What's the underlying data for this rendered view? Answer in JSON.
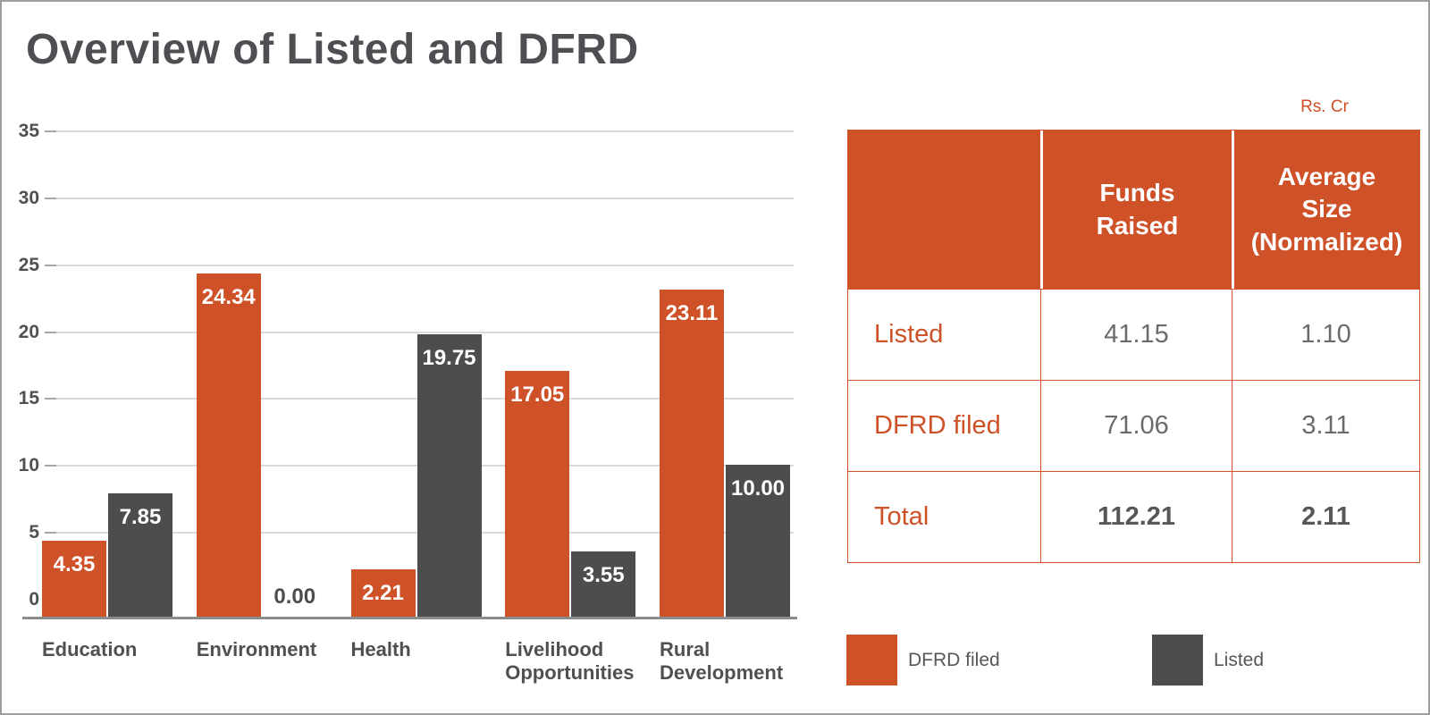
{
  "page": {
    "title": "Overview of Listed and DFRD"
  },
  "colors": {
    "accent_orange": "#CE5128",
    "bar_gray": "#4D4D4D"
  },
  "chart_data": {
    "type": "bar",
    "title": "Overview of Listed and DFRD",
    "categories": [
      "Education",
      "Environment",
      "Health",
      "Livelihood Opportunities",
      "Rural Development"
    ],
    "series": [
      {
        "name": "DFRD filed",
        "color": "#CE5128",
        "values": [
          4.35,
          24.34,
          2.21,
          17.05,
          23.11
        ]
      },
      {
        "name": "Listed",
        "color": "#4D4D4D",
        "values": [
          7.85,
          0.0,
          19.75,
          3.55,
          10.0
        ]
      }
    ],
    "ylim": [
      0,
      35
    ],
    "ytick_step": 5,
    "yticks": [
      "35",
      "30",
      "25",
      "20",
      "15",
      "10",
      "5",
      "0"
    ],
    "grid": true,
    "value_label_decimals": 2,
    "legend_position": "bottom-right"
  },
  "table": {
    "unit_label": "Rs. Cr",
    "col_headers": [
      "Funds\nRaised",
      "Average\nSize\n(Normalized)"
    ],
    "rows": [
      {
        "label": "Listed",
        "funds_raised": "41.15",
        "avg_size": "1.10"
      },
      {
        "label": "DFRD filed",
        "funds_raised": "71.06",
        "avg_size": "3.11"
      },
      {
        "label": "Total",
        "funds_raised": "112.21",
        "avg_size": "2.11"
      }
    ]
  },
  "legend": {
    "items": [
      {
        "label": "DFRD filed",
        "color": "#CE5128"
      },
      {
        "label": "Listed",
        "color": "#4D4D4D"
      }
    ]
  }
}
